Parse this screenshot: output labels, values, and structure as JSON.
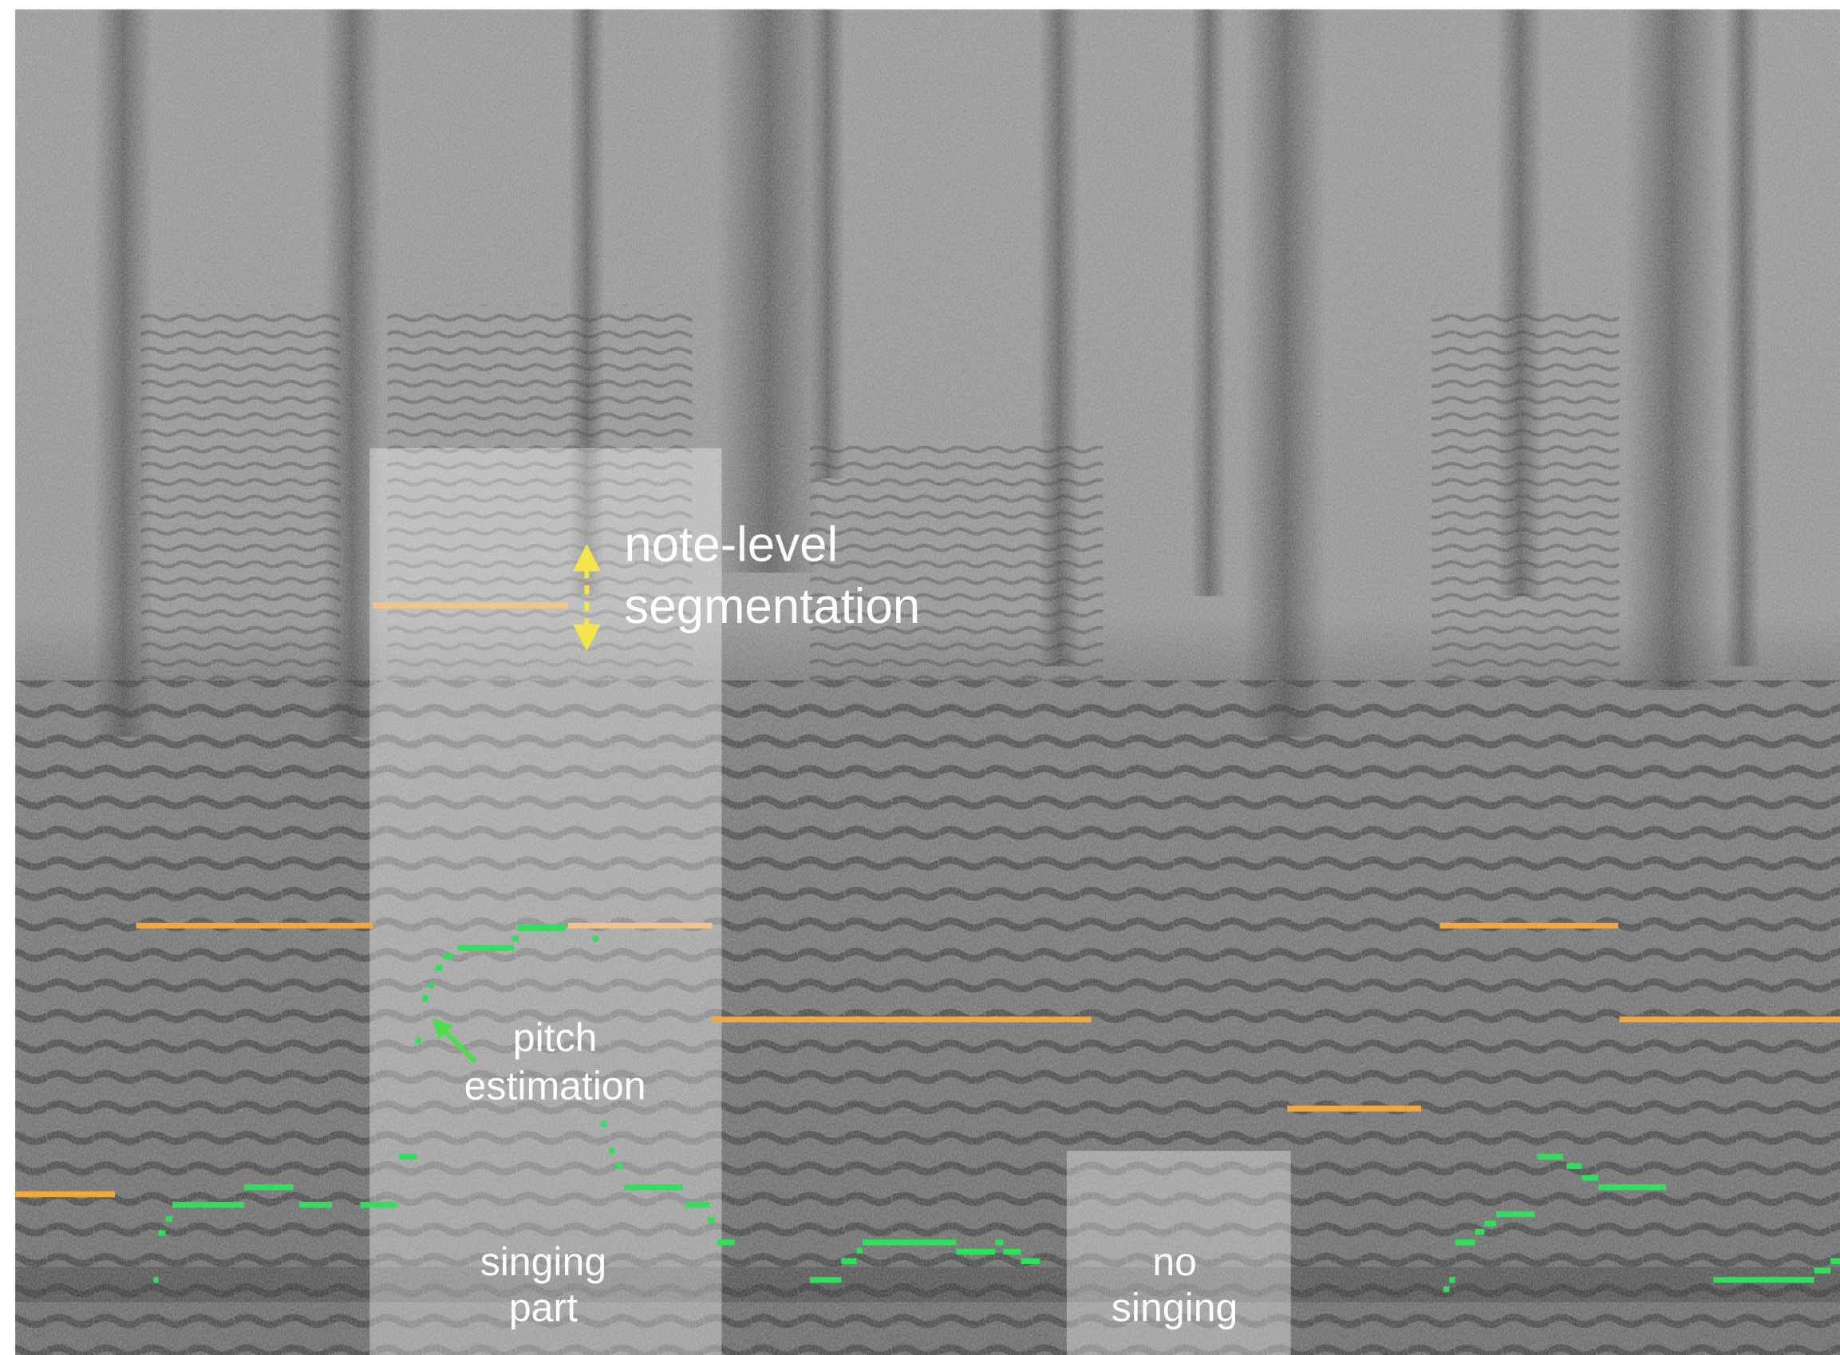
{
  "annotations": {
    "segmentation": {
      "lines": [
        "note-level",
        "segmentation"
      ]
    },
    "pitch": {
      "lines": [
        "pitch",
        "estimation"
      ]
    },
    "singing_part": {
      "lines": [
        "singing",
        "part"
      ]
    },
    "no_singing": {
      "lines": [
        "no",
        "singing"
      ]
    }
  }
}
